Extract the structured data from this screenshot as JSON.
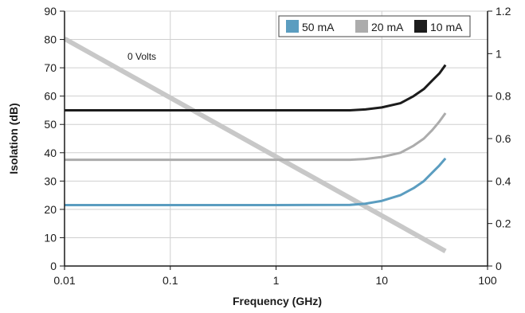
{
  "chart_data": {
    "type": "line",
    "xlabel": "Frequency (GHz)",
    "ylabel": "Isolation (dB)",
    "x_scale": "log",
    "xlim": [
      0.01,
      100
    ],
    "ylim": [
      0,
      90
    ],
    "y2lim": [
      0,
      1.2
    ],
    "x_ticks": [
      "0.01",
      "0.1",
      "1",
      "10",
      "100"
    ],
    "y_ticks": [
      "0",
      "10",
      "20",
      "30",
      "40",
      "50",
      "60",
      "70",
      "80",
      "90"
    ],
    "y2_ticks": [
      "0",
      "0.2",
      "0.4",
      "0.6",
      "0.8",
      "1",
      "1.2"
    ],
    "grid": true,
    "legend_position": "top-right",
    "series": [
      {
        "name": "50 mA",
        "color": "#5b9dc0",
        "axis": "left",
        "points": [
          [
            0.01,
            21.5
          ],
          [
            1,
            21.5
          ],
          [
            5,
            21.6
          ],
          [
            7,
            22
          ],
          [
            10,
            23
          ],
          [
            15,
            25
          ],
          [
            20,
            27.5
          ],
          [
            25,
            30
          ],
          [
            30,
            33
          ],
          [
            35,
            35.5
          ],
          [
            40,
            38
          ]
        ]
      },
      {
        "name": "20 mA",
        "color": "#acacac",
        "axis": "left",
        "points": [
          [
            0.01,
            37.5
          ],
          [
            1,
            37.5
          ],
          [
            5,
            37.5
          ],
          [
            7,
            37.8
          ],
          [
            10,
            38.5
          ],
          [
            15,
            40
          ],
          [
            20,
            42.5
          ],
          [
            25,
            45
          ],
          [
            30,
            48
          ],
          [
            35,
            51
          ],
          [
            40,
            54
          ]
        ]
      },
      {
        "name": "10 mA",
        "color": "#1c1c1c",
        "axis": "left",
        "points": [
          [
            0.01,
            55
          ],
          [
            1,
            55
          ],
          [
            5,
            55
          ],
          [
            7,
            55.3
          ],
          [
            10,
            56
          ],
          [
            15,
            57.5
          ],
          [
            20,
            60
          ],
          [
            25,
            62.5
          ],
          [
            30,
            65.5
          ],
          [
            35,
            68
          ],
          [
            40,
            71
          ]
        ]
      }
    ],
    "reference_line": {
      "axis": "right",
      "color": "#c8c8c8",
      "points": [
        [
          0.01,
          1.07
        ],
        [
          40,
          0.07
        ]
      ],
      "annotation": "0 Volts"
    }
  }
}
